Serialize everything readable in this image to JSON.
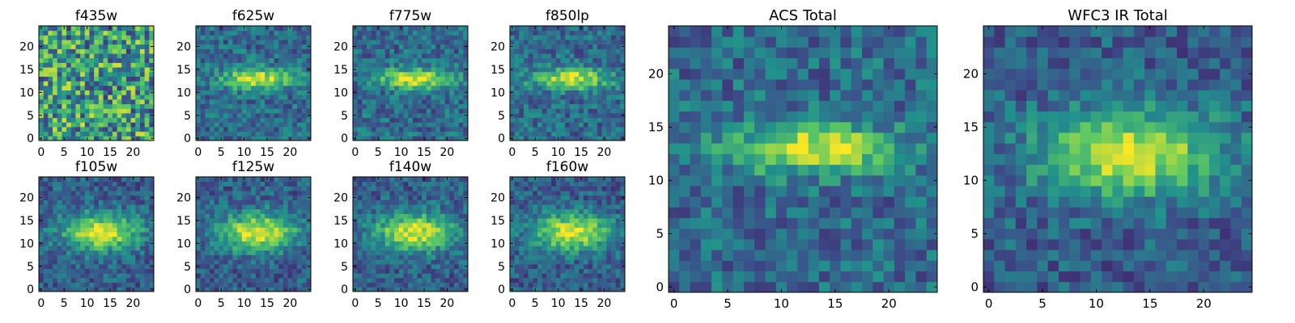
{
  "figure": {
    "colormap": [
      "#440154",
      "#3b528b",
      "#21918c",
      "#5ec962",
      "#fde725"
    ]
  },
  "chart_data": [
    {
      "id": "f435w",
      "type": "heatmap",
      "title": "f435w",
      "grid_size": 25,
      "xlim": [
        0,
        24
      ],
      "ylim": [
        0,
        24
      ],
      "xticks": [
        0,
        5,
        10,
        15,
        20
      ],
      "yticks": [
        0,
        5,
        10,
        15,
        20
      ],
      "pattern": "noise",
      "grid": false
    },
    {
      "id": "f625w",
      "type": "heatmap",
      "title": "f625w",
      "grid_size": 25,
      "xlim": [
        0,
        24
      ],
      "ylim": [
        0,
        24
      ],
      "xticks": [
        0,
        5,
        10,
        15,
        20
      ],
      "yticks": [
        0,
        5,
        10,
        15,
        20
      ],
      "pattern": "band",
      "grid": false
    },
    {
      "id": "f775w",
      "type": "heatmap",
      "title": "f775w",
      "grid_size": 25,
      "xlim": [
        0,
        24
      ],
      "ylim": [
        0,
        24
      ],
      "xticks": [
        0,
        5,
        10,
        15,
        20
      ],
      "yticks": [
        0,
        5,
        10,
        15,
        20
      ],
      "pattern": "band",
      "grid": false
    },
    {
      "id": "f850lp",
      "type": "heatmap",
      "title": "f850lp",
      "grid_size": 25,
      "xlim": [
        0,
        24
      ],
      "ylim": [
        0,
        24
      ],
      "xticks": [
        0,
        5,
        10,
        15,
        20
      ],
      "yticks": [
        0,
        5,
        10,
        15,
        20
      ],
      "pattern": "band",
      "grid": false
    },
    {
      "id": "f105w",
      "type": "heatmap",
      "title": "f105w",
      "grid_size": 25,
      "xlim": [
        0,
        24
      ],
      "ylim": [
        0,
        24
      ],
      "xticks": [
        0,
        5,
        10,
        15,
        20
      ],
      "yticks": [
        0,
        5,
        10,
        15,
        20
      ],
      "pattern": "blob",
      "grid": false
    },
    {
      "id": "f125w",
      "type": "heatmap",
      "title": "f125w",
      "grid_size": 25,
      "xlim": [
        0,
        24
      ],
      "ylim": [
        0,
        24
      ],
      "xticks": [
        0,
        5,
        10,
        15,
        20
      ],
      "yticks": [
        0,
        5,
        10,
        15,
        20
      ],
      "pattern": "blob",
      "grid": false
    },
    {
      "id": "f140w",
      "type": "heatmap",
      "title": "f140w",
      "grid_size": 25,
      "xlim": [
        0,
        24
      ],
      "ylim": [
        0,
        24
      ],
      "xticks": [
        0,
        5,
        10,
        15,
        20
      ],
      "yticks": [
        0,
        5,
        10,
        15,
        20
      ],
      "pattern": "blob",
      "grid": false
    },
    {
      "id": "f160w",
      "type": "heatmap",
      "title": "f160w",
      "grid_size": 25,
      "xlim": [
        0,
        24
      ],
      "ylim": [
        0,
        24
      ],
      "xticks": [
        0,
        5,
        10,
        15,
        20
      ],
      "yticks": [
        0,
        5,
        10,
        15,
        20
      ],
      "pattern": "blob",
      "grid": false
    },
    {
      "id": "acs-total",
      "type": "heatmap",
      "title": "ACS Total",
      "grid_size": 25,
      "xlim": [
        0,
        24
      ],
      "ylim": [
        0,
        24
      ],
      "xticks": [
        0,
        5,
        10,
        15,
        20
      ],
      "yticks": [
        0,
        5,
        10,
        15,
        20
      ],
      "pattern": "band",
      "grid": false
    },
    {
      "id": "wfc3-ir-total",
      "type": "heatmap",
      "title": "WFC3 IR Total",
      "grid_size": 25,
      "xlim": [
        0,
        24
      ],
      "ylim": [
        0,
        24
      ],
      "xticks": [
        0,
        5,
        10,
        15,
        20
      ],
      "yticks": [
        0,
        5,
        10,
        15,
        20
      ],
      "pattern": "blob",
      "grid": false
    }
  ]
}
